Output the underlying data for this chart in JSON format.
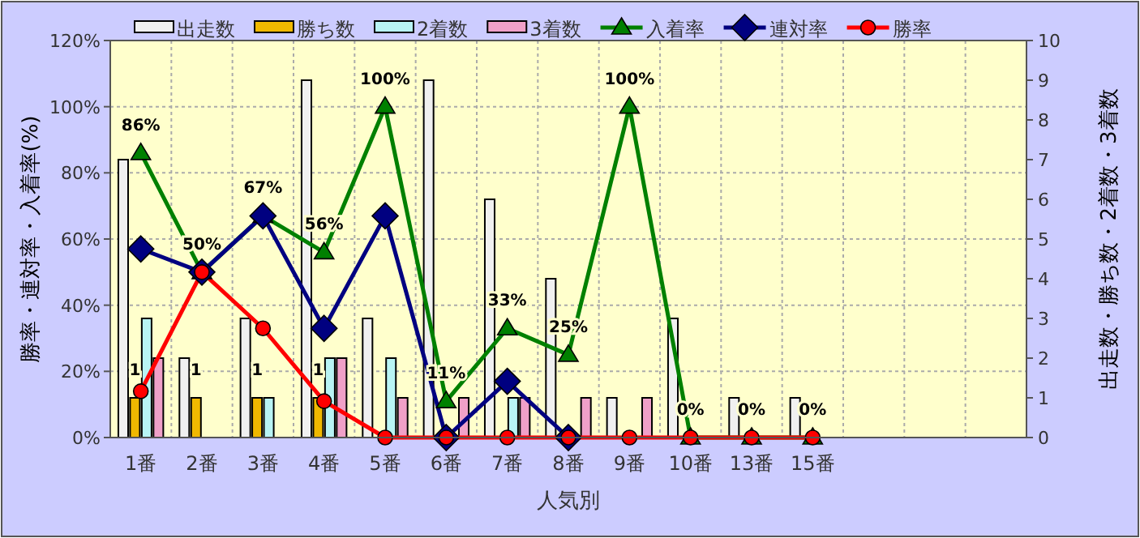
{
  "chart_data": {
    "type": "bar",
    "xlabel": "人気別",
    "ylabel": "勝率・連対率・入着率(%)",
    "y2label": "出走数・勝ち数・2着数・3着数",
    "categories": [
      "1番",
      "2番",
      "3番",
      "4番",
      "5番",
      "6番",
      "7番",
      "8番",
      "9番",
      "10番",
      "13番",
      "15番",
      null,
      null,
      null
    ],
    "ylim": [
      0,
      120
    ],
    "yticks": [
      {
        "value": 0,
        "label": "0%"
      },
      {
        "value": 20,
        "label": "20%"
      },
      {
        "value": 40,
        "label": "40%"
      },
      {
        "value": 60,
        "label": "60%"
      },
      {
        "value": 80,
        "label": "80%"
      },
      {
        "value": 100,
        "label": "100%"
      },
      {
        "value": 120,
        "label": "120%"
      }
    ],
    "y2lim": [
      0,
      10
    ],
    "y2ticks": [
      0,
      1,
      2,
      3,
      4,
      5,
      6,
      7,
      8,
      9,
      10
    ],
    "grid": true,
    "legend": "top",
    "series": [
      {
        "name": "出走数",
        "color": "#f0f0f0",
        "axis": "y2",
        "values": [
          7,
          2,
          3,
          9,
          3,
          9,
          6,
          4,
          1,
          3,
          1,
          1,
          null,
          null,
          null
        ]
      },
      {
        "name": "勝ち数",
        "color": "#f0b800",
        "axis": "y2",
        "values": [
          1,
          1,
          1,
          1,
          0,
          0,
          0,
          0,
          0,
          0,
          0,
          0,
          null,
          null,
          null
        ],
        "value_labels": [
          "1",
          "1",
          "1",
          "1",
          null,
          null,
          null,
          null,
          null,
          null,
          null,
          null,
          null,
          null,
          null
        ]
      },
      {
        "name": "2着数",
        "color": "#b8f4f4",
        "axis": "y2",
        "values": [
          3,
          0,
          1,
          2,
          2,
          0,
          1,
          0,
          0,
          0,
          0,
          0,
          null,
          null,
          null
        ]
      },
      {
        "name": "3着数",
        "color": "#f0a0c8",
        "axis": "y2",
        "values": [
          2,
          0,
          0,
          2,
          1,
          1,
          1,
          1,
          1,
          0,
          0,
          0,
          null,
          null,
          null
        ]
      },
      {
        "name": "入着率",
        "type": "line",
        "color": "#008000",
        "marker": "triangle",
        "values": [
          86,
          50,
          67,
          56,
          100,
          11,
          33,
          25,
          100,
          0,
          0,
          0,
          null,
          null,
          null
        ],
        "value_labels": [
          "86%",
          "50%",
          "67%",
          "56%",
          "100%",
          "11%",
          "33%",
          "25%",
          "100%",
          "0%",
          "0%",
          "0%",
          null,
          null,
          null
        ]
      },
      {
        "name": "連対率",
        "type": "line",
        "color": "#000080",
        "marker": "diamond",
        "values": [
          57,
          50,
          67,
          33,
          67,
          0,
          17,
          0,
          null,
          null,
          null,
          null,
          null,
          null,
          null
        ]
      },
      {
        "name": "勝率",
        "type": "line",
        "color": "#ff0000",
        "marker": "circle",
        "values": [
          14,
          50,
          33,
          11,
          0,
          0,
          0,
          0,
          0,
          0,
          0,
          0,
          null,
          null,
          null
        ]
      }
    ]
  }
}
